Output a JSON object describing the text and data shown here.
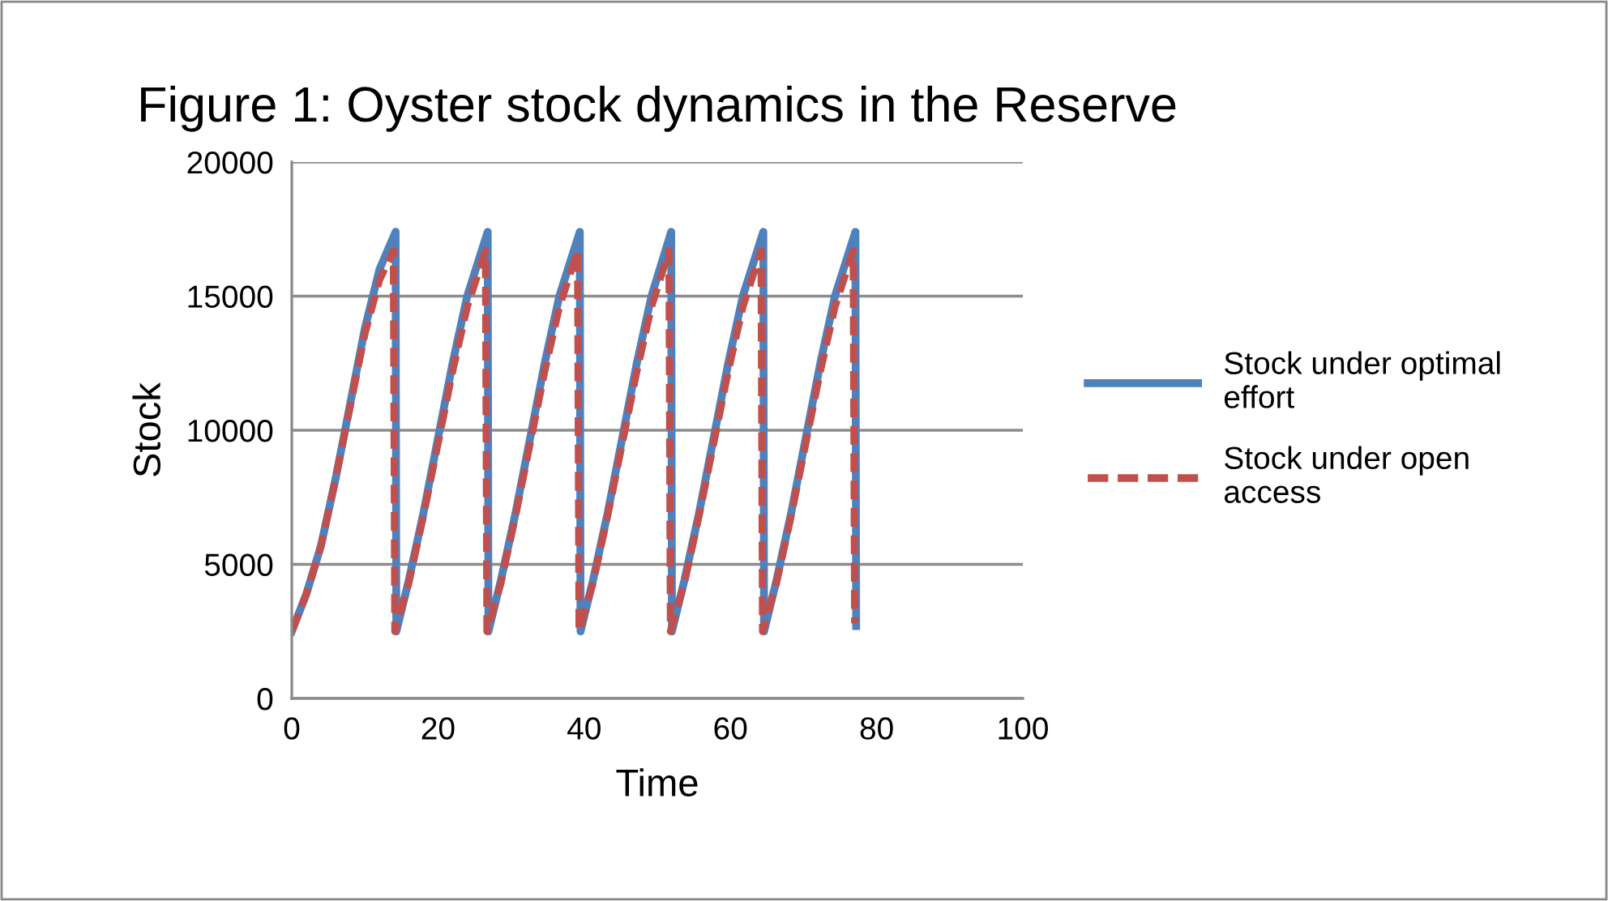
{
  "chart_data": {
    "type": "line",
    "title": "Figure 1: Oyster stock dynamics in the Reserve",
    "xlabel": "Time",
    "ylabel": "Stock",
    "series": [
      {
        "name": "Stock under optimal effort",
        "color": "#4f81bd",
        "line_style": "solid",
        "x": [
          0,
          2,
          4,
          6,
          8,
          10,
          12,
          14.2,
          14.3,
          16,
          18,
          20,
          22,
          24,
          26.8,
          26.9,
          28.6,
          30.6,
          32.6,
          34.6,
          36.6,
          39.4,
          39.5,
          41.2,
          43.2,
          45.2,
          47.2,
          49.2,
          51.9,
          52.0,
          53.7,
          55.7,
          57.7,
          59.7,
          61.7,
          64.5,
          64.6,
          66.3,
          68.3,
          70.3,
          72.3,
          74.3,
          77.1,
          77.2
        ],
        "values": [
          2500,
          3900,
          5700,
          8200,
          11000,
          13800,
          16000,
          17400,
          2500,
          4400,
          6900,
          9700,
          12500,
          15000,
          17400,
          2500,
          4400,
          6900,
          9700,
          12500,
          15000,
          17400,
          2500,
          4400,
          6900,
          9700,
          12500,
          15000,
          17400,
          2500,
          4400,
          6900,
          9700,
          12500,
          15000,
          17400,
          2500,
          4400,
          6900,
          9700,
          12500,
          15000,
          17400,
          2700
        ]
      },
      {
        "name": "Stock under open access",
        "color": "#c0504d",
        "line_style": "dashed",
        "x": [
          0,
          2,
          4,
          6,
          8,
          10,
          12,
          13.9,
          14.1,
          16,
          18,
          20,
          22,
          24,
          26.5,
          26.7,
          28.6,
          30.6,
          32.6,
          34.6,
          36.6,
          39.1,
          39.3,
          41.2,
          43.2,
          45.2,
          47.2,
          49.2,
          51.6,
          51.8,
          53.7,
          55.7,
          57.7,
          59.7,
          61.7,
          64.2,
          64.4,
          66.3,
          68.3,
          70.3,
          72.3,
          74.3,
          76.8,
          77.0
        ],
        "values": [
          2500,
          3900,
          5700,
          8200,
          10900,
          13600,
          15600,
          16700,
          2500,
          4300,
          6800,
          9500,
          12200,
          14600,
          16700,
          2500,
          4300,
          6800,
          9500,
          12200,
          14600,
          16700,
          2500,
          4300,
          6800,
          9500,
          12200,
          14600,
          16700,
          2500,
          4300,
          6800,
          9500,
          12200,
          14600,
          16700,
          2500,
          4300,
          6800,
          9500,
          12200,
          14600,
          16700,
          2800
        ]
      }
    ],
    "xlim": [
      0,
      100
    ],
    "xticks": [
      0,
      20,
      40,
      60,
      80,
      100
    ],
    "ylim": [
      0,
      20000
    ],
    "yticks": [
      0,
      5000,
      10000,
      15000,
      20000
    ],
    "grid": "y",
    "legend": "right"
  }
}
